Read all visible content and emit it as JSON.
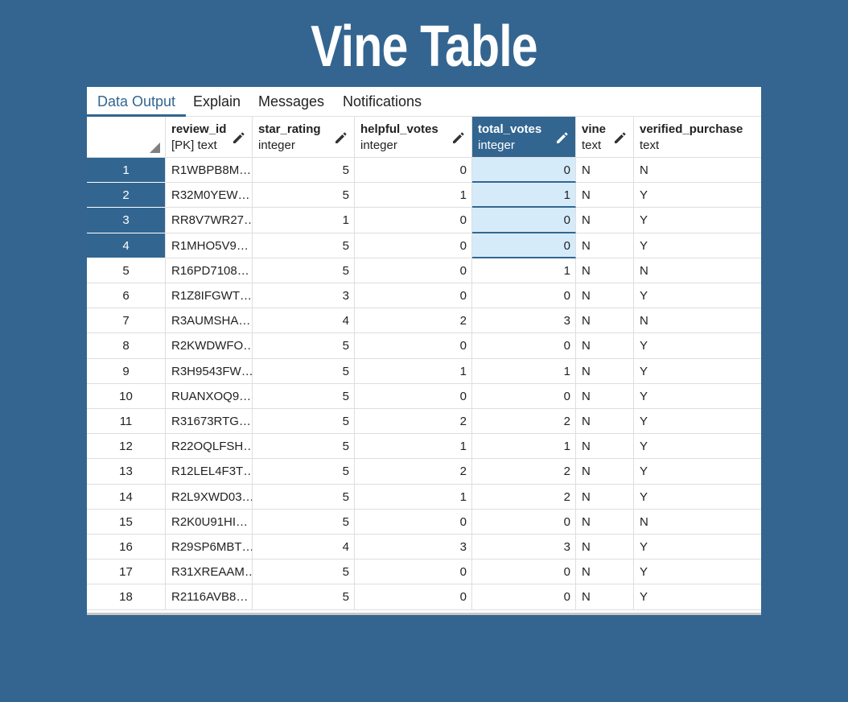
{
  "title": "Vine Table",
  "tabs": [
    {
      "label": "Data Output",
      "active": true
    },
    {
      "label": "Explain",
      "active": false
    },
    {
      "label": "Messages",
      "active": false
    },
    {
      "label": "Notifications",
      "active": false
    }
  ],
  "columns": [
    {
      "name": "review_id",
      "type": "[PK] text",
      "align": "left",
      "selected": false
    },
    {
      "name": "star_rating",
      "type": "integer",
      "align": "right",
      "selected": false
    },
    {
      "name": "helpful_votes",
      "type": "integer",
      "align": "right",
      "selected": false
    },
    {
      "name": "total_votes",
      "type": "integer",
      "align": "right",
      "selected": true
    },
    {
      "name": "vine",
      "type": "text",
      "align": "left",
      "selected": false
    },
    {
      "name": "verified_purchase",
      "type": "text",
      "align": "left",
      "selected": false
    }
  ],
  "icons": {
    "edit": "pencil-icon",
    "sort": "corner-triangle-icon"
  },
  "colors": {
    "accent": "#326690",
    "selection": "#d6ebf9",
    "background": "#336590"
  },
  "selected_rows": [
    1,
    2,
    3,
    4
  ],
  "rows": [
    {
      "n": "1",
      "cells": [
        "R1WBPB8M…",
        "5",
        "0",
        "0",
        "N",
        "N"
      ]
    },
    {
      "n": "2",
      "cells": [
        "R32M0YEW…",
        "5",
        "1",
        "1",
        "N",
        "Y"
      ]
    },
    {
      "n": "3",
      "cells": [
        "RR8V7WR27…",
        "1",
        "0",
        "0",
        "N",
        "Y"
      ]
    },
    {
      "n": "4",
      "cells": [
        "R1MHO5V9…",
        "5",
        "0",
        "0",
        "N",
        "Y"
      ]
    },
    {
      "n": "5",
      "cells": [
        "R16PD7108…",
        "5",
        "0",
        "1",
        "N",
        "N"
      ]
    },
    {
      "n": "6",
      "cells": [
        "R1Z8IFGWT…",
        "3",
        "0",
        "0",
        "N",
        "Y"
      ]
    },
    {
      "n": "7",
      "cells": [
        "R3AUMSHA…",
        "4",
        "2",
        "3",
        "N",
        "N"
      ]
    },
    {
      "n": "8",
      "cells": [
        "R2KWDWFO…",
        "5",
        "0",
        "0",
        "N",
        "Y"
      ]
    },
    {
      "n": "9",
      "cells": [
        "R3H9543FW…",
        "5",
        "1",
        "1",
        "N",
        "Y"
      ]
    },
    {
      "n": "10",
      "cells": [
        "RUANXOQ9…",
        "5",
        "0",
        "0",
        "N",
        "Y"
      ]
    },
    {
      "n": "11",
      "cells": [
        "R31673RTG…",
        "5",
        "2",
        "2",
        "N",
        "Y"
      ]
    },
    {
      "n": "12",
      "cells": [
        "R22OQLFSH…",
        "5",
        "1",
        "1",
        "N",
        "Y"
      ]
    },
    {
      "n": "13",
      "cells": [
        "R12LEL4F3T…",
        "5",
        "2",
        "2",
        "N",
        "Y"
      ]
    },
    {
      "n": "14",
      "cells": [
        "R2L9XWD03…",
        "5",
        "1",
        "2",
        "N",
        "Y"
      ]
    },
    {
      "n": "15",
      "cells": [
        "R2K0U91HI…",
        "5",
        "0",
        "0",
        "N",
        "N"
      ]
    },
    {
      "n": "16",
      "cells": [
        "R29SP6MBT…",
        "4",
        "3",
        "3",
        "N",
        "Y"
      ]
    },
    {
      "n": "17",
      "cells": [
        "R31XREAAM…",
        "5",
        "0",
        "0",
        "N",
        "Y"
      ]
    },
    {
      "n": "18",
      "cells": [
        "R2116AVB8…",
        "5",
        "0",
        "0",
        "N",
        "Y"
      ]
    }
  ]
}
